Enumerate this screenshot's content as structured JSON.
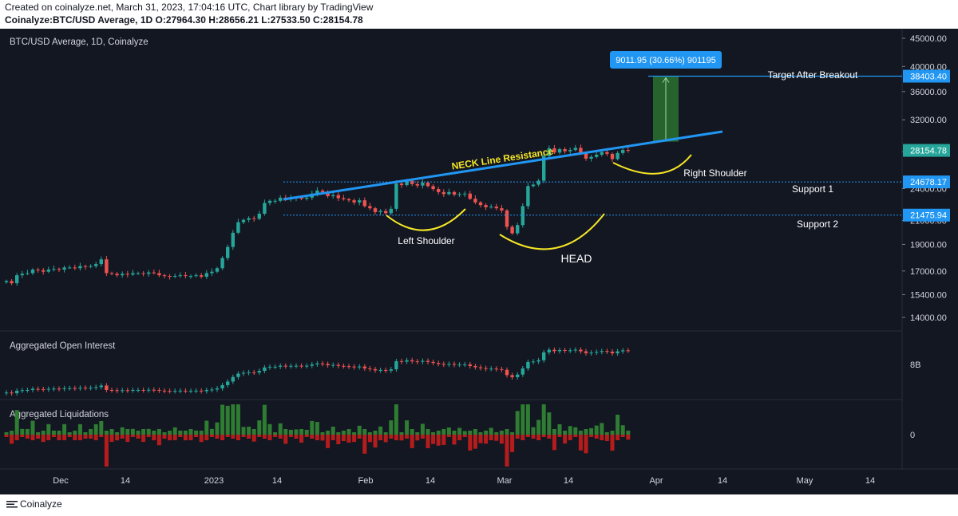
{
  "header": {
    "line1": "Created on coinalyze.net, March 31, 2023, 17:04:16 UTC, Chart library by TradingView",
    "line2": "Coinalyze:BTC/USD Average, 1D O:27964.30 H:28656.21 L:27533.50 C:28154.78"
  },
  "footer": {
    "brand": "Coinalyze",
    "brand_icon": "bars-icon"
  },
  "colors": {
    "background": "#131722",
    "up": "#26a69a",
    "down": "#ef5350",
    "neckline": "#2196f3",
    "annotation_curve": "#f5e625",
    "target_box": "#2e7d32",
    "label_bg": "#2196f3",
    "text": "#d1d4dc",
    "liq_up": "#2e7d32",
    "liq_down": "#b71c1c"
  },
  "chart_data": [
    {
      "type": "candlestick",
      "title": "BTC/USD Average, 1D, Coinalyze",
      "ohlc": {
        "open": 27964.3,
        "high": 28656.21,
        "low": 27533.5,
        "close": 28154.78
      },
      "y_scale": "log",
      "ylim": [
        13000,
        46000
      ],
      "y_ticks": [
        45000,
        40000,
        36000,
        32000,
        28000,
        24000,
        21000,
        19000,
        17000,
        15400,
        14000
      ],
      "x_ticks": [
        "Dec",
        "14",
        "2023",
        "14",
        "Feb",
        "14",
        "Mar",
        "14",
        "Apr",
        "14",
        "May",
        "14"
      ],
      "price_labels": [
        {
          "text": "38403.40",
          "value": 38403.4
        },
        {
          "text": "28154.78",
          "value": 28154.78
        },
        {
          "text": "24678.17",
          "value": 24678.17
        },
        {
          "text": "21475.94",
          "value": 21475.94
        }
      ],
      "measure_label": "9011.95 (30.66%) 901195",
      "annotations": {
        "neckline": "NECK Line Resistance",
        "target": "Target After Breakout",
        "support1": "Support 1",
        "support2": "Support 2",
        "left_shoulder": "Left Shoulder",
        "head": "HEAD",
        "right_shoulder": "Right Shoulder"
      },
      "closes": [
        16300,
        16150,
        16700,
        16800,
        16850,
        17100,
        17050,
        16950,
        17100,
        17150,
        17100,
        17250,
        17250,
        17200,
        17350,
        17300,
        17350,
        17500,
        17850,
        16850,
        16800,
        16700,
        16800,
        16750,
        16850,
        16850,
        16800,
        16900,
        16850,
        16700,
        16650,
        16600,
        16650,
        16700,
        16650,
        16650,
        16700,
        16600,
        16850,
        16950,
        17200,
        17950,
        18800,
        19950,
        20850,
        21050,
        21200,
        21150,
        21600,
        22600,
        22800,
        22800,
        23100,
        22950,
        23050,
        23100,
        23000,
        23100,
        23500,
        23800,
        23650,
        23250,
        23350,
        23050,
        22950,
        22850,
        22650,
        22850,
        22300,
        22100,
        21750,
        21850,
        21650,
        22050,
        24500,
        24350,
        24800,
        24450,
        24300,
        24600,
        24250,
        23950,
        23650,
        23450,
        23650,
        23400,
        23450,
        23500,
        23000,
        22650,
        22400,
        22200,
        22250,
        22100,
        21900,
        20450,
        19900,
        20600,
        22300,
        24250,
        24400,
        24800,
        27500,
        28400,
        27900,
        28300,
        28050,
        28200,
        28450,
        27850,
        27200,
        27400,
        27650,
        27950,
        27750,
        27150,
        27850,
        28200,
        28150
      ],
      "series_panels": [
        {
          "name": "Aggregated Open Interest",
          "y_ticks": [
            "8B"
          ]
        },
        {
          "name": "Aggregated Liquidations",
          "y_ticks": [
            "0"
          ]
        }
      ]
    }
  ]
}
